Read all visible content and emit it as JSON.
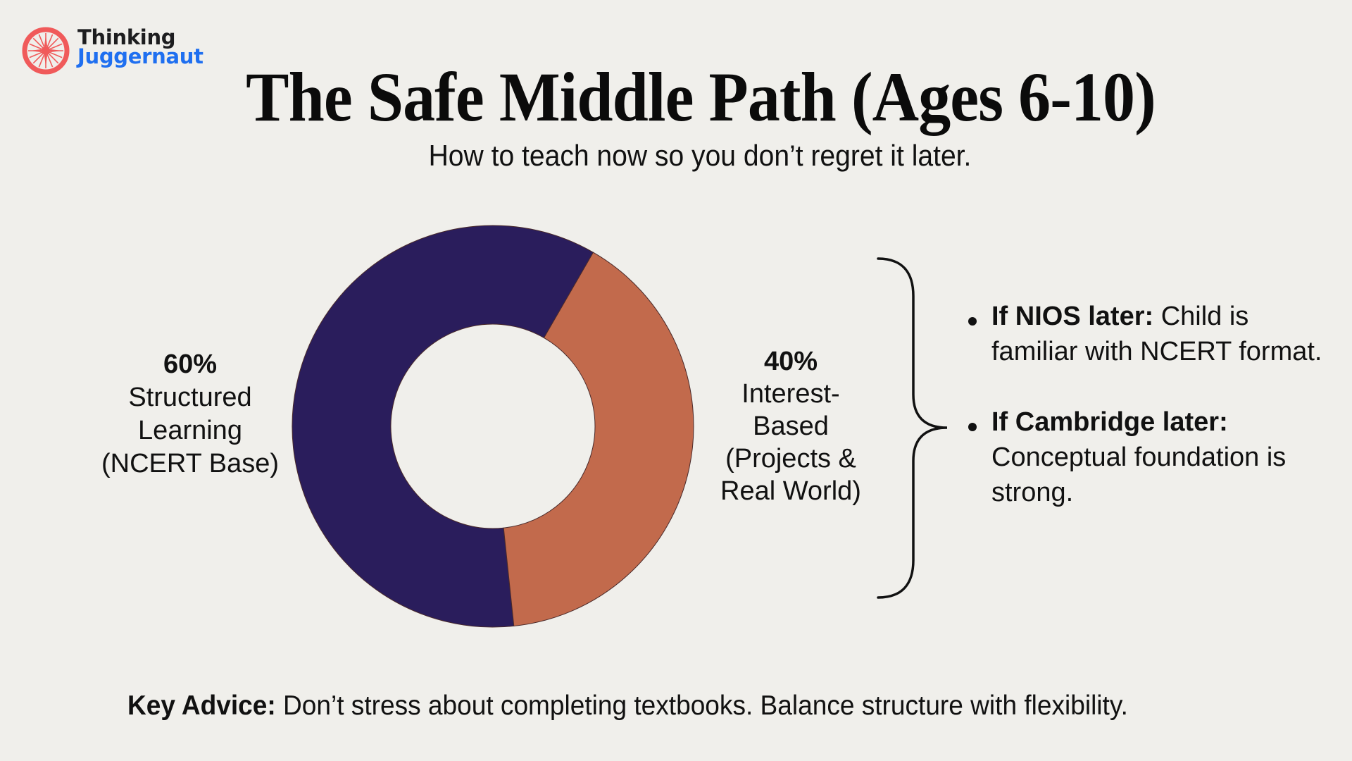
{
  "brand": {
    "line1": "Thinking",
    "line2": "Juggernaut",
    "icon": "wheel-logo-icon",
    "colors": {
      "icon": "#f05a5a",
      "line1": "#1d1d1f",
      "line2": "#1f6ff0"
    }
  },
  "header": {
    "title": "The Safe Middle Path (Ages 6-10)",
    "subtitle": "How to teach now so you don’t regret it later."
  },
  "chart_data": {
    "type": "pie",
    "variant": "donut",
    "title": "The Safe Middle Path (Ages 6-10)",
    "categories": [
      "Structured Learning (NCERT Base)",
      "Interest-Based (Projects & Real World)"
    ],
    "values": [
      60,
      40
    ],
    "unit": "%",
    "colors": [
      "#2a1d5c",
      "#c26a4c"
    ],
    "labels": [
      {
        "pct": "60%",
        "lines": [
          "Structured",
          "Learning",
          "(NCERT Base)"
        ],
        "position": "left"
      },
      {
        "pct": "40%",
        "lines": [
          "Interest-",
          "Based",
          "(Projects &",
          "Real World)"
        ],
        "position": "right"
      }
    ],
    "legend": "none",
    "grid": false
  },
  "notes": {
    "items": [
      {
        "bold": "If NIOS later:",
        "text": " Child is familiar with NCERT format."
      },
      {
        "bold": "If Cambridge later:",
        "text": " Conceptual foundation is strong."
      }
    ]
  },
  "footer": {
    "bold": "Key Advice:",
    "text": " Don’t stress about completing textbooks. Balance structure with flexibility."
  }
}
